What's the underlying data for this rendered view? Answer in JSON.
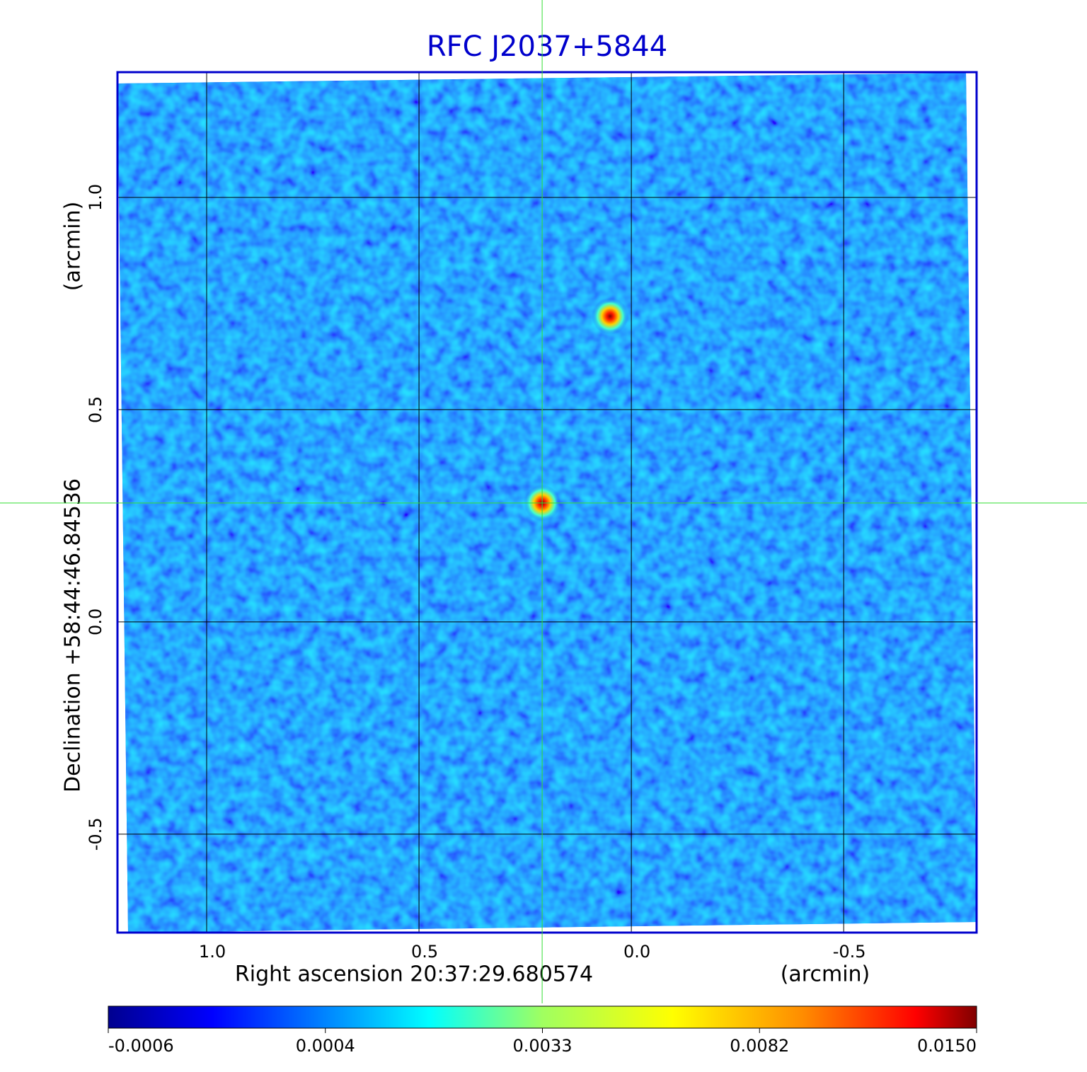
{
  "chart_data": {
    "type": "image",
    "title": "RFC J2037+5844",
    "xlabel": "Right ascension  20:37:29.680574",
    "xunit": "(arcmin)",
    "ylabel": "Declination  +58:44:46.84536",
    "yunit": "(arcmin)",
    "xlim": [
      1.21,
      -0.813
    ],
    "ylim": [
      -0.732,
      1.295
    ],
    "xticks": [
      {
        "value": 1,
        "label": "1.0"
      },
      0.5,
      {
        "value": 0,
        "label": "0.0"
      },
      -0.5
    ],
    "yticks": [
      {
        "value": 1,
        "label": "1.0"
      },
      0.5,
      {
        "value": 0,
        "label": "0.0"
      },
      -0.5
    ],
    "grid": true,
    "sources": [
      {
        "x": 0.21,
        "y": 0.28,
        "peak": 0.015
      },
      {
        "x": 0.05,
        "y": 0.72,
        "peak": 0.015
      }
    ],
    "colorbar_ticks": [
      {
        "value": -0.0006,
        "label": "-0.0006"
      },
      {
        "value": 0.0004,
        "label": "0.0004"
      },
      {
        "value": 0.0033,
        "label": "0.0033"
      },
      {
        "value": 0.0082,
        "label": "0.0082"
      },
      {
        "value": 0.015,
        "label": "0.0150"
      }
    ]
  }
}
